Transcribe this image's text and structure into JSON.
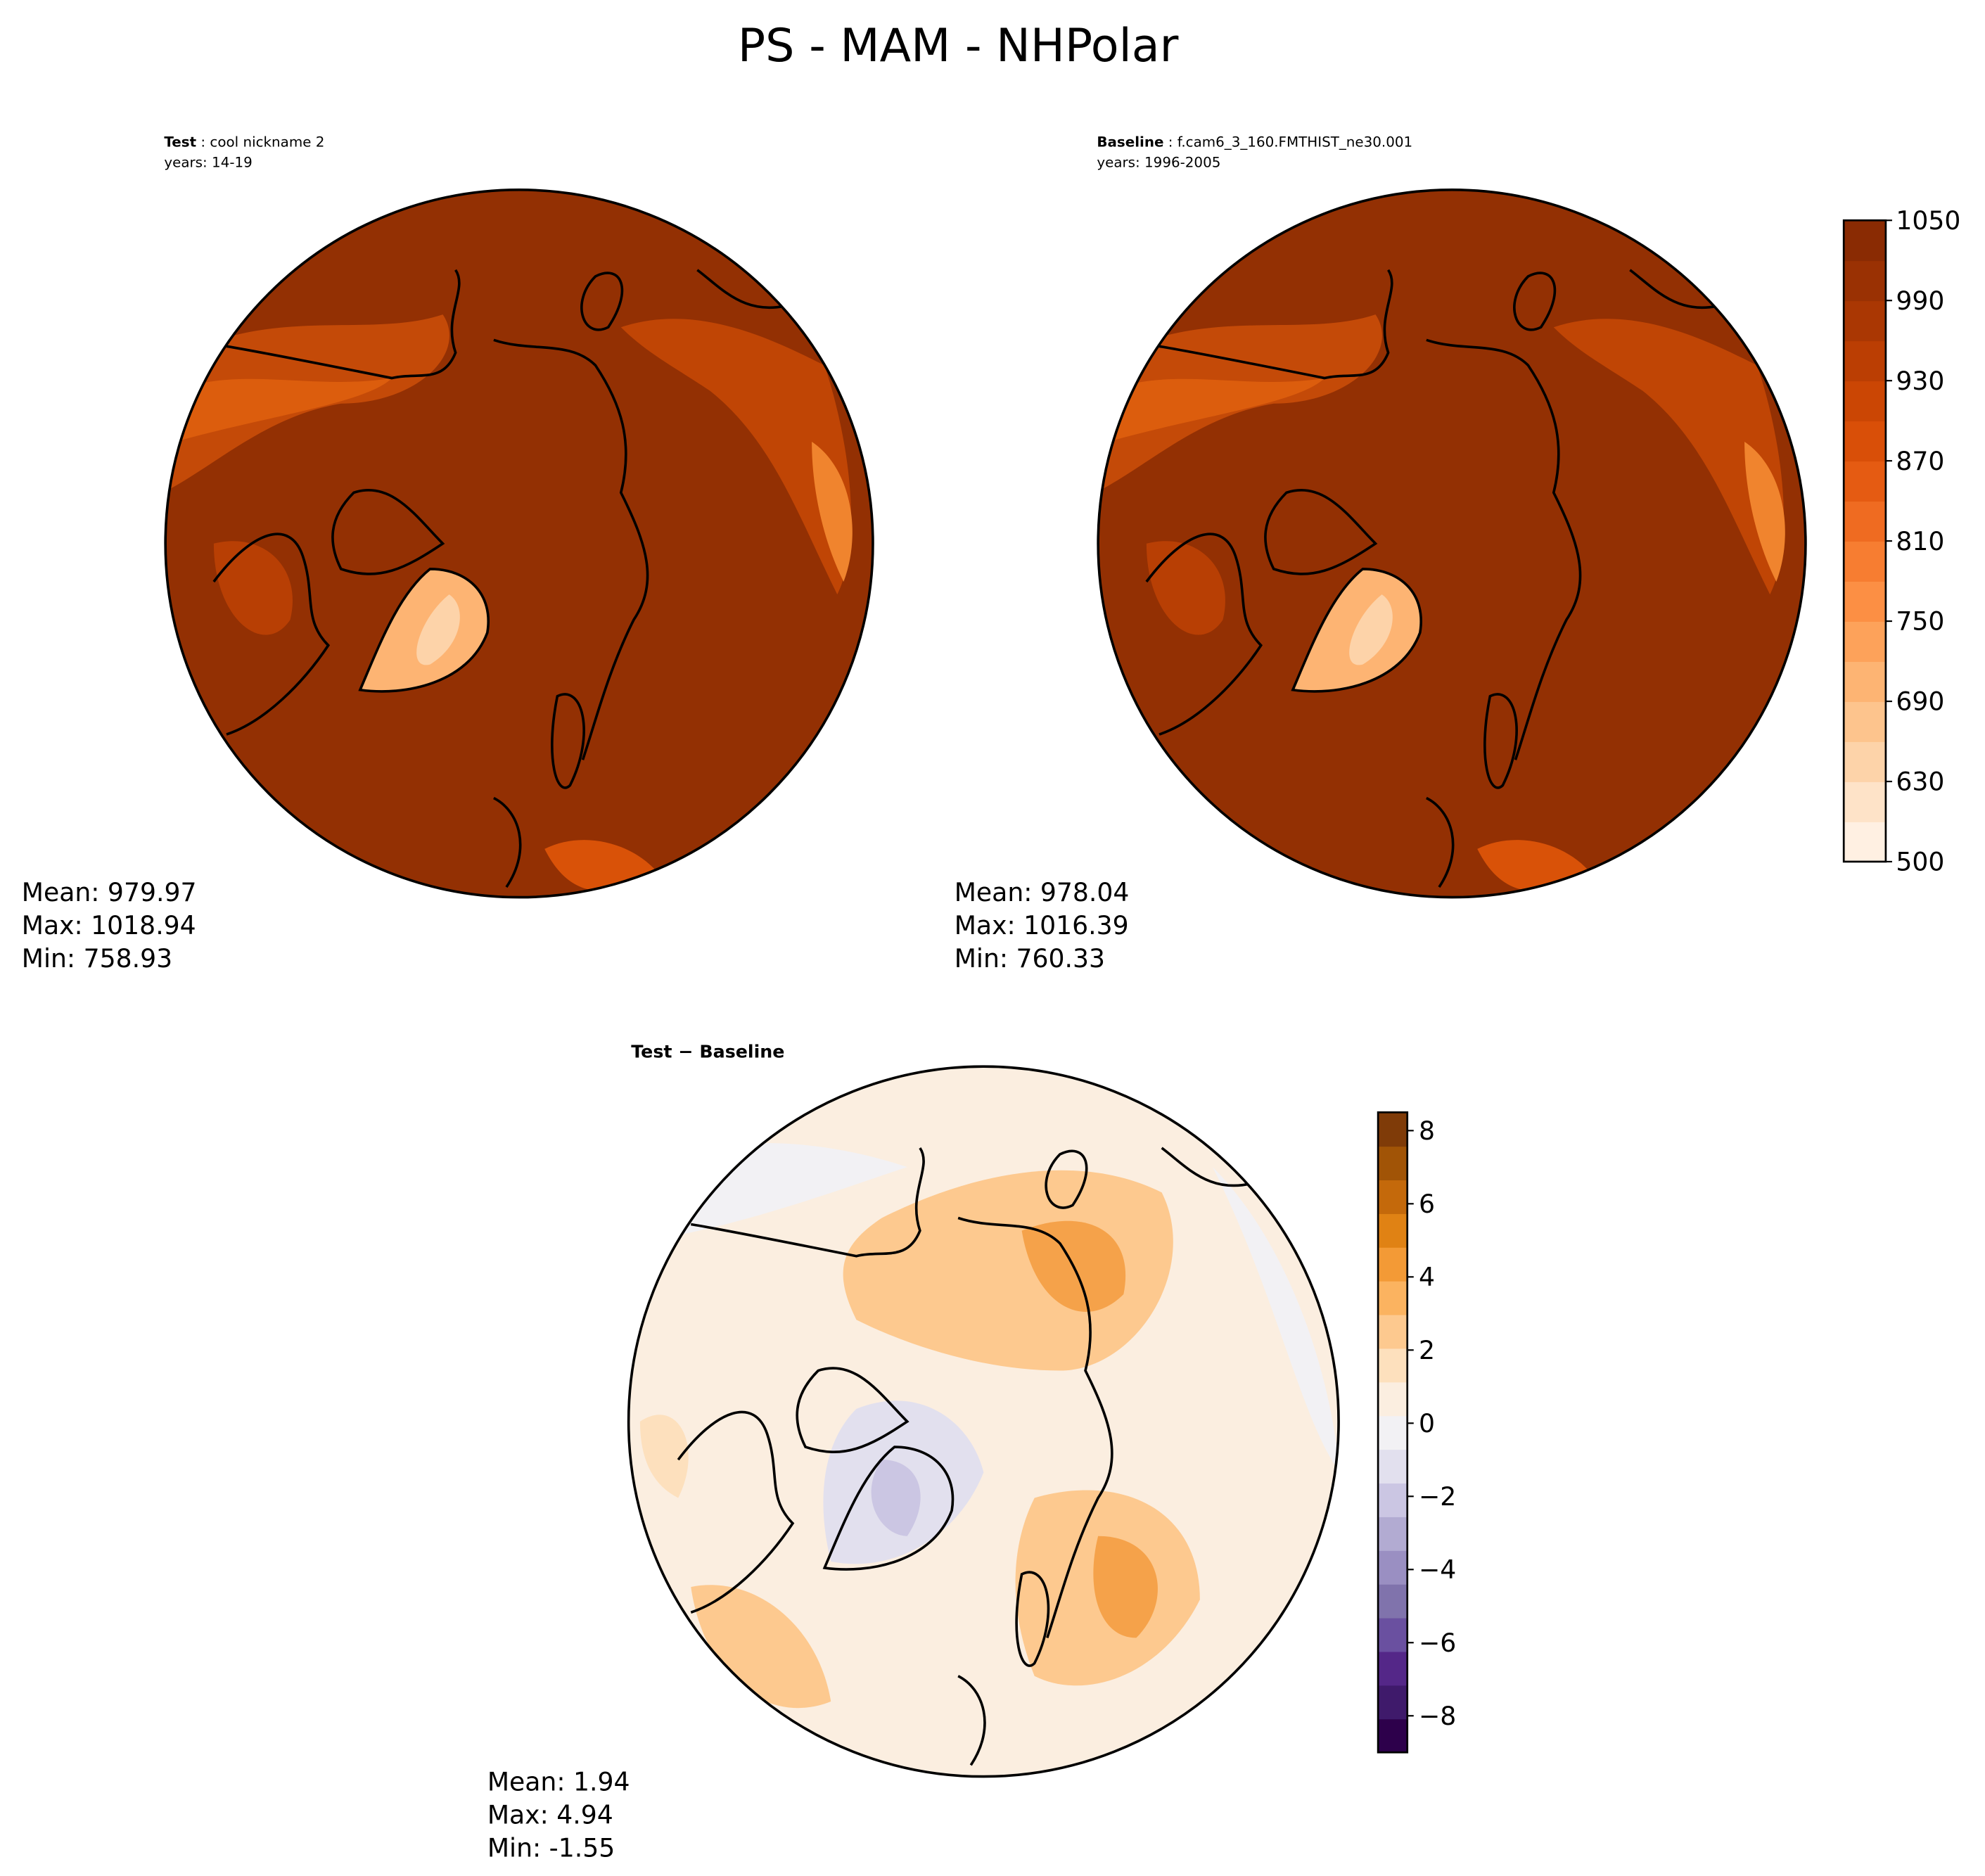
{
  "title": "PS - MAM - NHPolar",
  "panels": [
    {
      "heading_bold": "Test",
      "heading_rest": ": cool nickname 2",
      "years": "years: 14-19",
      "stats": [
        "Mean: 979.97",
        "Max: 1018.94",
        "Min: 758.93"
      ]
    },
    {
      "heading_bold": "Baseline",
      "heading_rest": ": f.cam6_3_160.FMTHIST_ne30.001",
      "years": "years: 1996-2005",
      "stats": [
        "Mean: 978.04",
        "Max: 1016.39",
        "Min: 760.33"
      ]
    },
    {
      "heading_bold": "Test − Baseline",
      "stats": [
        "Mean:  1.94",
        "Max:  4.94",
        "Min: -1.55"
      ]
    }
  ],
  "colorbar": {
    "levels": [
      500,
      600,
      630,
      660,
      690,
      720,
      750,
      780,
      810,
      840,
      870,
      900,
      930,
      960,
      990,
      1020,
      1050
    ],
    "ticks": [
      500,
      630,
      690,
      750,
      810,
      870,
      930,
      990,
      1050
    ],
    "colors": [
      "#fff0e2",
      "#fee3c8",
      "#fdd3a9",
      "#fdc48d",
      "#fdb473",
      "#fda25a",
      "#fc8f44",
      "#f77d31",
      "#ef6b21",
      "#e55b12",
      "#d94f08",
      "#cb4604",
      "#bb3e03",
      "#aa3703",
      "#9a3103",
      "#8a2b03"
    ]
  },
  "diff_colorbar": {
    "ylim": [
      -9,
      8.5
    ],
    "ticks": [
      {
        "value": -8,
        "label": "−8"
      },
      {
        "value": -6,
        "label": "−6"
      },
      {
        "value": -4,
        "label": "−4"
      },
      {
        "value": -2,
        "label": "−2"
      },
      0,
      2,
      4,
      6,
      8
    ],
    "colors": [
      "#2d004b",
      "#3f1a6b",
      "#542788",
      "#6a50a0",
      "#8073ac",
      "#9a8fc2",
      "#b2abd2",
      "#cbc6e3",
      "#e2e0ee",
      "#f2f1f4",
      "#fbeee0",
      "#fde0bd",
      "#fdc98f",
      "#fbb360",
      "#f39a36",
      "#e08214",
      "#c4690b",
      "#a15406",
      "#7f3b08"
    ]
  }
}
